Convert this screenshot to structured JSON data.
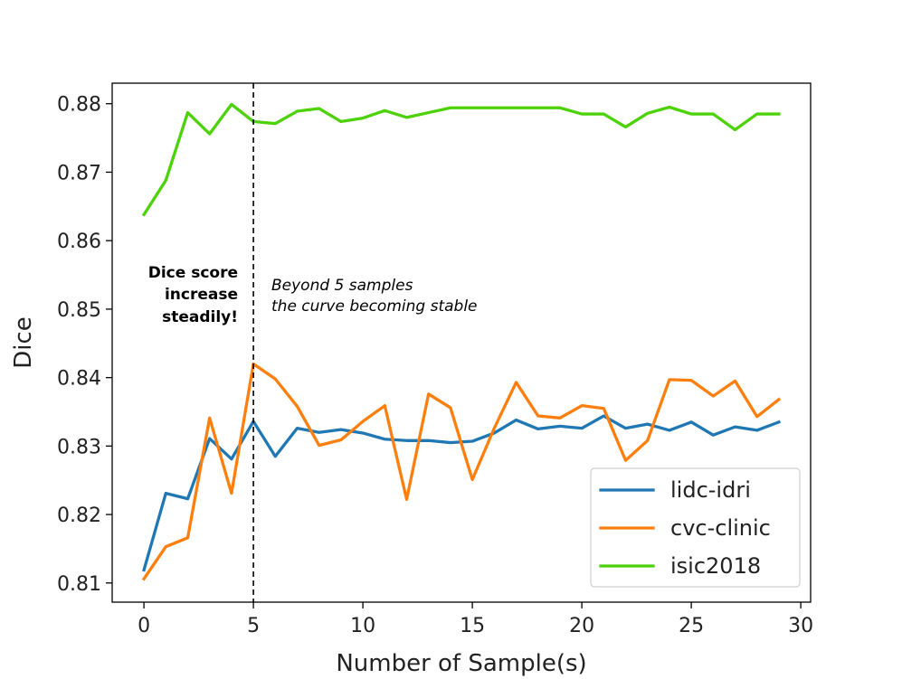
{
  "chart_data": {
    "type": "line",
    "title": "",
    "xlabel": "Number of Sample(s)",
    "ylabel": "Dice",
    "xlim": [
      -1.45,
      30.45
    ],
    "ylim": [
      0.8072,
      0.883
    ],
    "xticks": [
      0,
      5,
      10,
      15,
      20,
      25,
      30
    ],
    "xtick_labels": [
      "0",
      "5",
      "10",
      "15",
      "20",
      "25",
      "30"
    ],
    "yticks": [
      0.81,
      0.82,
      0.83,
      0.84,
      0.85,
      0.86,
      0.87,
      0.88
    ],
    "ytick_labels": [
      "0.81",
      "0.82",
      "0.83",
      "0.84",
      "0.85",
      "0.86",
      "0.87",
      "0.88"
    ],
    "grid": false,
    "legend_position": "lower-right",
    "x": [
      0,
      1,
      2,
      3,
      4,
      5,
      6,
      7,
      8,
      9,
      10,
      11,
      12,
      13,
      14,
      15,
      16,
      17,
      18,
      19,
      20,
      21,
      22,
      23,
      24,
      25,
      26,
      27,
      28,
      29
    ],
    "series": [
      {
        "name": "lidc-idri",
        "color": "#1f77b4",
        "values": [
          0.8119,
          0.8231,
          0.8223,
          0.8311,
          0.8281,
          0.8336,
          0.8285,
          0.8326,
          0.832,
          0.8324,
          0.8319,
          0.831,
          0.8308,
          0.8308,
          0.8305,
          0.8307,
          0.8319,
          0.8338,
          0.8325,
          0.8329,
          0.8326,
          0.8344,
          0.8326,
          0.8332,
          0.8323,
          0.8335,
          0.8316,
          0.8328,
          0.8323,
          0.8335
        ]
      },
      {
        "name": "cvc-clinic",
        "color": "#ff7f0e",
        "values": [
          0.8106,
          0.8153,
          0.8166,
          0.8341,
          0.8231,
          0.842,
          0.8398,
          0.8358,
          0.8301,
          0.8309,
          0.8336,
          0.8359,
          0.8222,
          0.8376,
          0.8356,
          0.8251,
          0.8326,
          0.8393,
          0.8344,
          0.8341,
          0.8359,
          0.8355,
          0.8279,
          0.8308,
          0.8397,
          0.8396,
          0.8373,
          0.8395,
          0.8343,
          0.8368
        ]
      },
      {
        "name": "isic2018",
        "color": "#4dd20a",
        "values": [
          0.8638,
          0.8688,
          0.8787,
          0.8756,
          0.8799,
          0.8774,
          0.8771,
          0.8789,
          0.8793,
          0.8774,
          0.8779,
          0.879,
          0.878,
          0.8787,
          0.8794,
          0.8794,
          0.8794,
          0.8794,
          0.8794,
          0.8794,
          0.8785,
          0.8785,
          0.8766,
          0.8786,
          0.8795,
          0.8785,
          0.8785,
          0.8762,
          0.8785,
          0.8785
        ]
      }
    ],
    "vline": {
      "x": 5,
      "style": "dashed",
      "color": "#000000"
    },
    "annotations": {
      "left": [
        "Dice score",
        "increase",
        "steadily!"
      ],
      "right": [
        "Beyond 5 samples",
        "the curve becoming stable"
      ]
    }
  }
}
